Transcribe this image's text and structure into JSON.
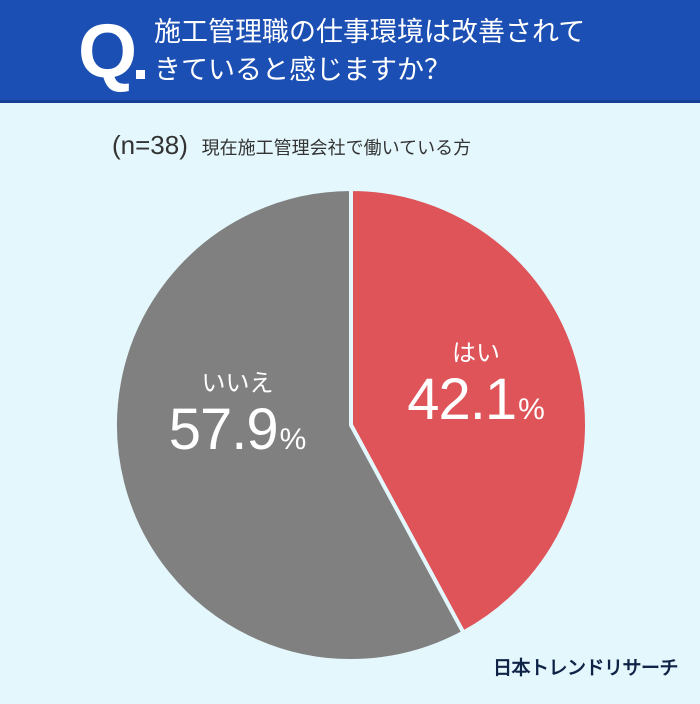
{
  "header": {
    "q_label": "Q",
    "question": "施工管理職の仕事環境は改善されてきていると感じますか？",
    "question_line1": "施工管理職の仕事環境は改善されて",
    "question_line2": "きていると感じますか？"
  },
  "subtitle": {
    "sample_size": "(n=38)",
    "respondents": "現在施工管理会社で働いている方"
  },
  "brand": "日本トレンドリサーチ",
  "colors": {
    "header_bg": "#1c4fb3",
    "background": "#e3f7fc",
    "yes": "#de5458",
    "no": "#808080",
    "brand_text": "#0f2347"
  },
  "chart_data": {
    "type": "pie",
    "title": "施工管理職の仕事環境は改善されてきていると感じますか？",
    "subtitle": "(n=38) 現在施工管理会社で働いている方",
    "categories": [
      "はい",
      "いいえ"
    ],
    "values": [
      42.1,
      57.9
    ],
    "unit": "%",
    "colors": [
      "#de5458",
      "#808080"
    ],
    "start_angle": "12 o'clock, clockwise",
    "legend": "none (labels on slices)"
  },
  "labels": {
    "yes": {
      "category": "はい",
      "value": "42.1",
      "unit": "%"
    },
    "no": {
      "category": "いいえ",
      "value": "57.9",
      "unit": "%"
    }
  }
}
